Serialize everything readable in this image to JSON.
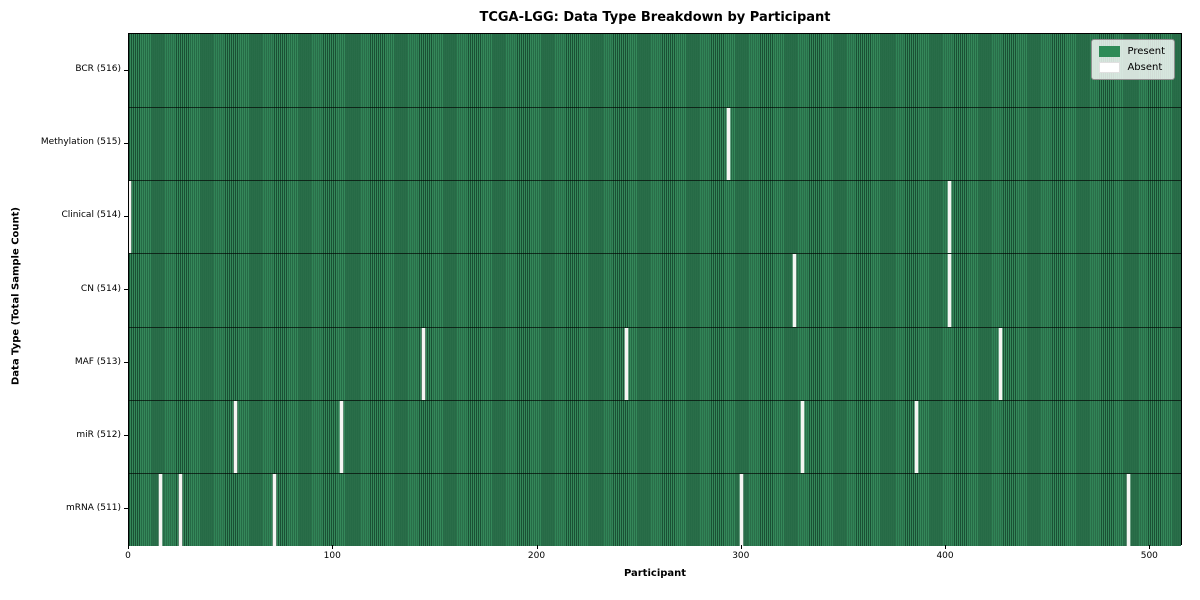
{
  "title": "TCGA-LGG: Data Type Breakdown by Participant",
  "axes": {
    "xlabel": "Participant",
    "ylabel": "Data Type (Total Sample Count)"
  },
  "legend": {
    "present_label": "Present",
    "absent_label": "Absent"
  },
  "colors": {
    "present": "#2e8b57",
    "absent": "#ffffff",
    "row_edge": "#0a2d1c",
    "legend_background": "rgba(255,255,255,0.8)"
  },
  "chart_data": {
    "type": "heatmap",
    "title": "TCGA-LGG: Data Type Breakdown by Participant",
    "xlabel": "Participant",
    "ylabel": "Data Type (Total Sample Count)",
    "n_participants": 516,
    "x_range": [
      0,
      516
    ],
    "x_ticks": [
      0,
      100,
      200,
      300,
      400,
      500
    ],
    "legend_entries": [
      "Present",
      "Absent"
    ],
    "legend_position": "upper right",
    "grid": false,
    "rows": [
      {
        "label": "BCR (516)",
        "data_type": "BCR",
        "present_count": 516,
        "absent_count": 0,
        "absent_participants": []
      },
      {
        "label": "Methylation (515)",
        "data_type": "Methylation",
        "present_count": 515,
        "absent_count": 1,
        "absent_participants": [
          294
        ]
      },
      {
        "label": "Clinical (514)",
        "data_type": "Clinical",
        "present_count": 514,
        "absent_count": 2,
        "absent_participants": [
          0,
          402
        ]
      },
      {
        "label": "CN (514)",
        "data_type": "CN",
        "present_count": 514,
        "absent_count": 2,
        "absent_participants": [
          326,
          402
        ]
      },
      {
        "label": "MAF (513)",
        "data_type": "MAF",
        "present_count": 513,
        "absent_count": 3,
        "absent_participants": [
          144,
          244,
          427
        ]
      },
      {
        "label": "miR (512)",
        "data_type": "miR",
        "present_count": 512,
        "absent_count": 4,
        "absent_participants": [
          52,
          104,
          330,
          386
        ]
      },
      {
        "label": "mRNA (511)",
        "data_type": "mRNA",
        "present_count": 511,
        "absent_count": 5,
        "absent_participants": [
          15,
          25,
          71,
          300,
          490
        ]
      }
    ]
  }
}
